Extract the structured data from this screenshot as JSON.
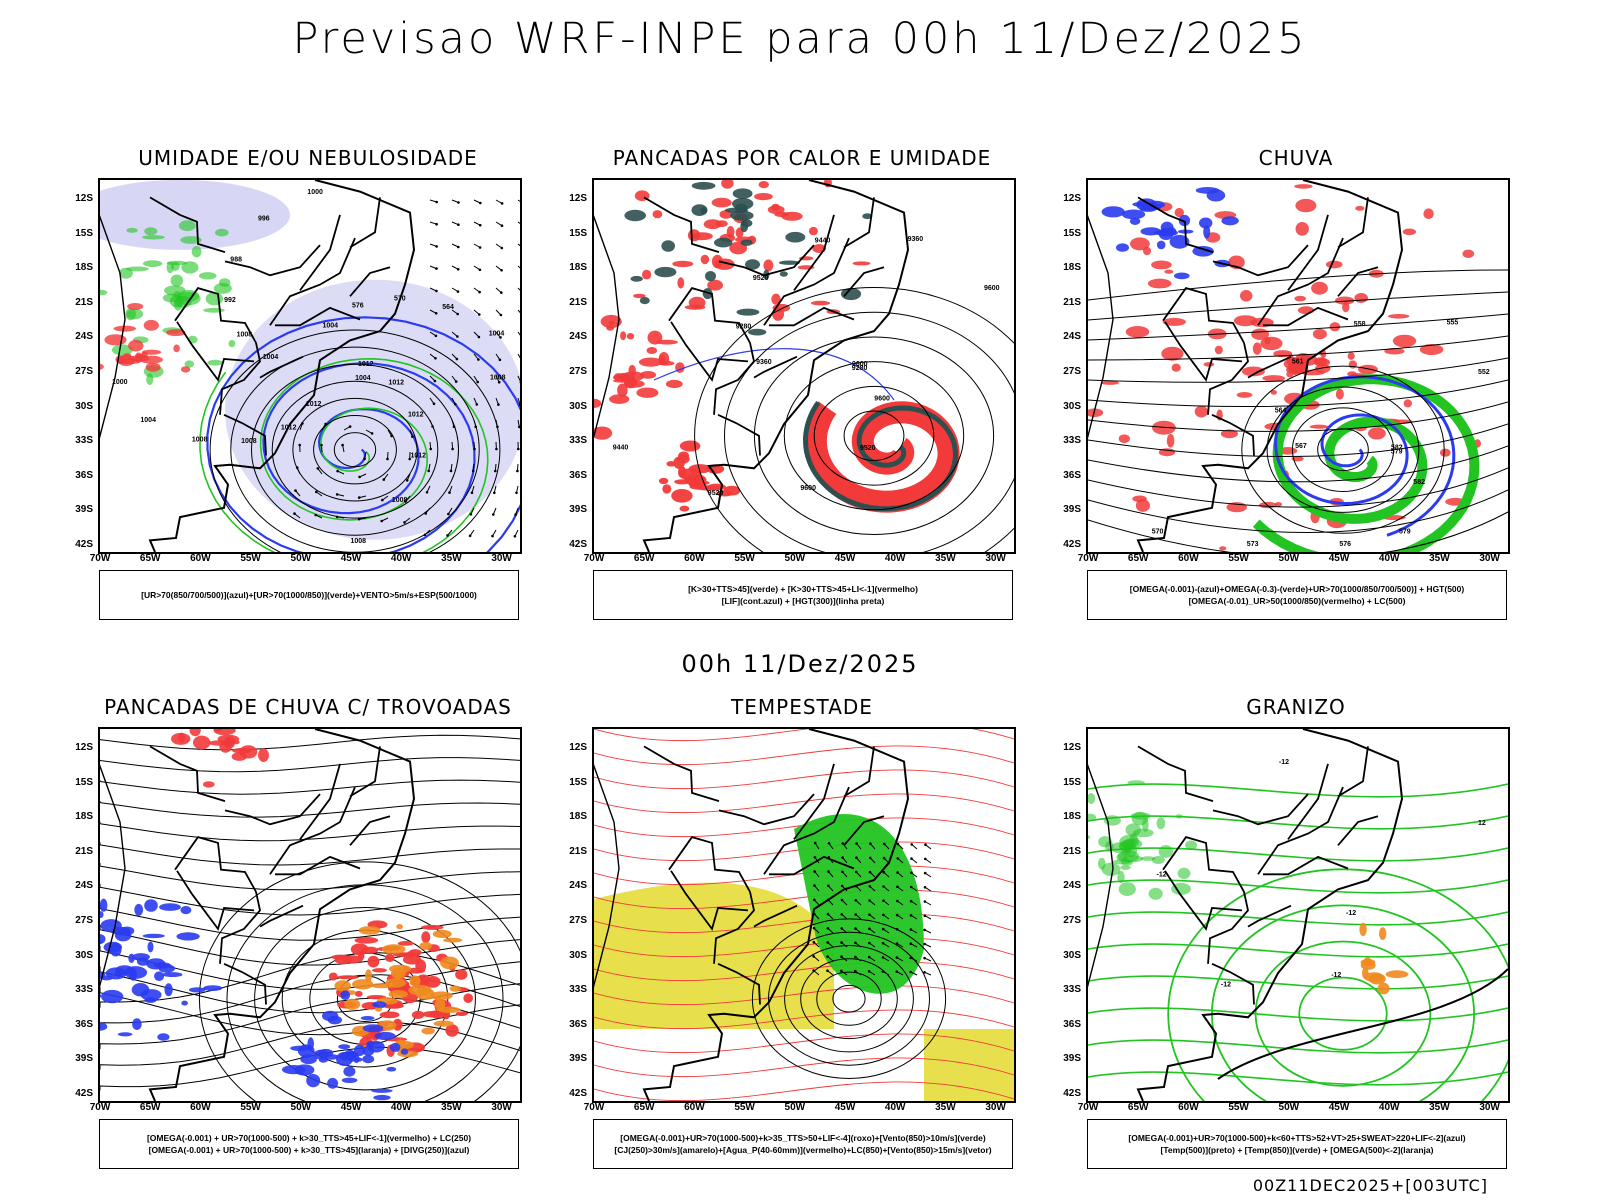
{
  "title": "Previsao WRF-INPE  para 00h 11/Dez/2025",
  "mid_label": "00h 11/Dez/2025",
  "footer": "00Z11DEC2025+[003UTC]",
  "chart_data": {
    "type": "map-panels",
    "lat_ticks": [
      "12S",
      "15S",
      "18S",
      "21S",
      "24S",
      "27S",
      "30S",
      "33S",
      "36S",
      "39S",
      "42S"
    ],
    "lon_ticks": [
      "70W",
      "65W",
      "60W",
      "55W",
      "50W",
      "45W",
      "40W",
      "35W",
      "30W"
    ],
    "lat_range": [
      -42,
      -10
    ],
    "lon_range": [
      -70,
      -28
    ],
    "panels": [
      {
        "title": "UMIDADE E/OU NEBULOSIDADE",
        "legend": [
          "[UR>70(850/700/500)](azul)+[UR>70(1000/850)](verde)+VENTO>5m/s+ESP(500/1000)"
        ],
        "contour_labels": [
          "1012",
          "1012",
          "1012",
          "1012",
          "1008",
          "1008",
          "1012",
          "1012",
          "1008",
          "1008",
          "1004",
          "1000",
          "1004",
          "1008",
          "992",
          "988",
          "996",
          "1000",
          "1004",
          "576",
          "570",
          "564",
          "1004",
          "1008",
          "1004"
        ]
      },
      {
        "title": "PANCADAS POR CALOR E UMIDADE",
        "legend": [
          "[K>30+TTS>45](verde) + [K>30+TTS>45+LI<-1](vermelho)",
          "[LIF](cont.azul) + [HGT(300)](linha preta)"
        ],
        "contour_labels": [
          "9600",
          "9600",
          "9520",
          "9600",
          "9520",
          "9440",
          "9360",
          "9280",
          "9520",
          "9440",
          "9360",
          "9600",
          "9280"
        ]
      },
      {
        "title": "CHUVA",
        "legend": [
          "[OMEGA(-0.001)-(azul)+OMEGA(-0.3)-(verde)+UR>70(1000/850/700/500)] + HGT(500)",
          "[OMEGA(-0.01)_UR>50(1000/850)(vermelho) + LC(500)"
        ],
        "contour_labels": [
          "582",
          "582",
          "579",
          "576",
          "573",
          "570",
          "567",
          "564",
          "561",
          "558",
          "555",
          "552",
          "579"
        ]
      },
      {
        "title": "PANCADAS DE CHUVA C/ TROVOADAS",
        "legend": [
          "[OMEGA(-0.001) + UR>70(1000-500) + k>30_TTS>45+LIF<-1](vermelho) + LC(250)",
          "[OMEGA(-0.001) + UR>70(1000-500) + k>30_TTS>45](laranja) + [DIVG(250)](azul)"
        ],
        "contour_labels": []
      },
      {
        "title": "TEMPESTADE",
        "legend": [
          "[OMEGA(-0.001)+UR>70(1000-500)+k>35_TTS>50+LIF<-4](roxo)+[Vento(850)>10m/s](verde)",
          "[CJ(250)>30m/s](amarelo)+[Agua_P(40-60mm)](vermelho)+LC(850)+[Vento(850)>15m/s](vetor)"
        ],
        "contour_labels": []
      },
      {
        "title": "GRANIZO",
        "legend": [
          "[OMEGA(-0.001)+UR>70(1000-500)+k<60+TTS>52+VT>25+SWEAT>220+LIF<-2](azul)",
          "[Temp(500)](preto) + [Temp(850)](verde) + [OMEGA(500)<-2](laranja)"
        ],
        "contour_labels": [
          "-12",
          "-12",
          "-12",
          "-12",
          "-12",
          "12"
        ]
      }
    ]
  },
  "colors": {
    "humid_blue": "#9a9ae6",
    "deep_blue": "#2a3bf0",
    "green": "#22c422",
    "red": "#f23a3a",
    "orange": "#f08a1e",
    "yellow": "#e6dc3a",
    "dark_teal": "#2e4f4f",
    "black": "#000000"
  }
}
